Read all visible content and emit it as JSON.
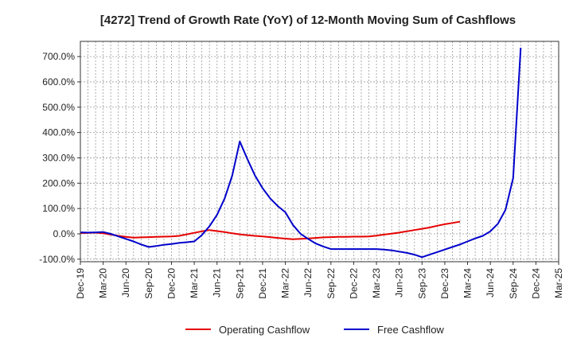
{
  "chart_data": {
    "type": "line",
    "title": "[4272]  Trend of Growth Rate (YoY) of 12-Month Moving Sum of Cashflows",
    "xlabel": "",
    "ylabel": "",
    "ylim": [
      -110,
      760
    ],
    "y_ticks": [
      -100,
      0,
      100,
      200,
      300,
      400,
      500,
      600,
      700
    ],
    "y_tick_labels": [
      "-100.0%",
      "0.0%",
      "100.0%",
      "200.0%",
      "300.0%",
      "400.0%",
      "500.0%",
      "600.0%",
      "700.0%"
    ],
    "x_start": "Dec-19",
    "x_tick_labels": [
      "Dec-19",
      "Mar-20",
      "Jun-20",
      "Sep-20",
      "Dec-20",
      "Mar-21",
      "Jun-21",
      "Sep-21",
      "Dec-21",
      "Mar-22",
      "Jun-22",
      "Sep-22",
      "Dec-22",
      "Mar-23",
      "Jun-23",
      "Sep-23",
      "Dec-23",
      "Mar-24",
      "Jun-24",
      "Sep-24",
      "Dec-24",
      "Mar-25"
    ],
    "grid": true,
    "legend_position": "bottom",
    "series": [
      {
        "name": "Operating Cashflow",
        "color": "#e60000",
        "values": [
          3,
          4,
          5,
          2,
          -3,
          -8,
          -12,
          -15,
          -14,
          -13,
          -12,
          -11,
          -10,
          -8,
          -2,
          4,
          10,
          15,
          11,
          7,
          2,
          -2,
          -5,
          -8,
          -10,
          -13,
          -16,
          -19,
          -21,
          -20,
          -18,
          -16,
          -14,
          -13,
          -12,
          -12,
          -11,
          -11,
          -10,
          -7,
          -3,
          1,
          5,
          10,
          15,
          20,
          25,
          32,
          38,
          43,
          48
        ]
      },
      {
        "name": "Free Cashflow",
        "color": "#0000cc",
        "values": [
          6,
          5,
          6,
          7,
          0,
          -10,
          -20,
          -30,
          -42,
          -52,
          -48,
          -43,
          -40,
          -36,
          -33,
          -30,
          -5,
          30,
          75,
          140,
          230,
          365,
          295,
          230,
          180,
          140,
          110,
          85,
          35,
          0,
          -20,
          -38,
          -50,
          -60,
          -60,
          -60,
          -60,
          -60,
          -60,
          -60,
          -62,
          -65,
          -70,
          -75,
          -82,
          -92,
          -82,
          -72,
          -62,
          -52,
          -42,
          -30,
          -18,
          -8,
          10,
          40,
          95,
          220,
          735
        ]
      }
    ]
  }
}
